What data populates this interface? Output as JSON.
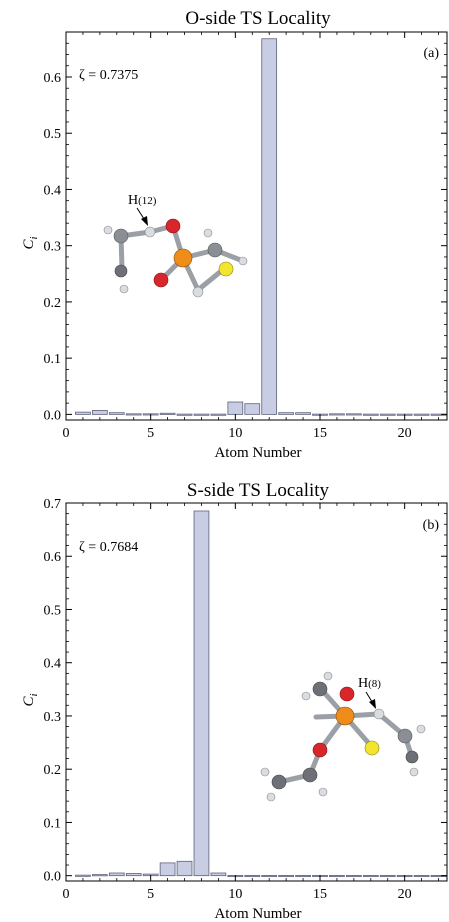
{
  "chart_data": [
    {
      "type": "bar",
      "title": "O-side TS Locality",
      "panel_label": "(a)",
      "annotation": "ζ = 0.7375",
      "xlabel": "Atom Number",
      "ylabel": "C",
      "ylabel_sub": "i",
      "xlim": [
        0,
        22.5
      ],
      "ylim": [
        -0.01,
        0.68
      ],
      "xticks": [
        0,
        5,
        10,
        15,
        20
      ],
      "yticks": [
        0.0,
        0.1,
        0.2,
        0.3,
        0.4,
        0.5,
        0.6
      ],
      "ytick_labels": [
        "0.0",
        "0.1",
        "0.2",
        "0.3",
        "0.4",
        "0.5",
        "0.6"
      ],
      "x": [
        1,
        2,
        3,
        4,
        5,
        6,
        7,
        8,
        9,
        10,
        11,
        12,
        13,
        14,
        15,
        16,
        17,
        18,
        19,
        20,
        21,
        22
      ],
      "values": [
        0.004,
        0.007,
        0.003,
        0.001,
        0.001,
        0.002,
        0.0005,
        0.0005,
        0.0005,
        0.022,
        0.019,
        0.668,
        0.003,
        0.003,
        0.0005,
        0.001,
        0.001,
        0.0005,
        0.0005,
        0.0005,
        0.0005,
        0.0005
      ],
      "molecule_label": "H",
      "molecule_label_sub": "(12)"
    },
    {
      "type": "bar",
      "title": "S-side TS Locality",
      "panel_label": "(b)",
      "annotation": "ζ = 0.7684",
      "xlabel": "Atom Number",
      "ylabel": "C",
      "ylabel_sub": "i",
      "xlim": [
        0,
        22.5
      ],
      "ylim": [
        -0.01,
        0.7
      ],
      "xticks": [
        0,
        5,
        10,
        15,
        20
      ],
      "yticks": [
        0.0,
        0.1,
        0.2,
        0.3,
        0.4,
        0.5,
        0.6,
        0.7
      ],
      "ytick_labels": [
        "0.0",
        "0.1",
        "0.2",
        "0.3",
        "0.4",
        "0.5",
        "0.6",
        "0.7"
      ],
      "x": [
        1,
        2,
        3,
        4,
        5,
        6,
        7,
        8,
        9,
        10,
        11,
        12,
        13,
        14,
        15,
        16,
        17,
        18,
        19,
        20,
        21,
        22
      ],
      "values": [
        0.001,
        0.002,
        0.005,
        0.004,
        0.003,
        0.024,
        0.027,
        0.685,
        0.005,
        0.0005,
        0.0005,
        0.0005,
        0.0005,
        0.0005,
        0.0005,
        0.0005,
        0.0005,
        0.0005,
        0.0005,
        0.0005,
        0.0005,
        0.0005
      ],
      "molecule_label": "H",
      "molecule_label_sub": "(8)"
    }
  ]
}
